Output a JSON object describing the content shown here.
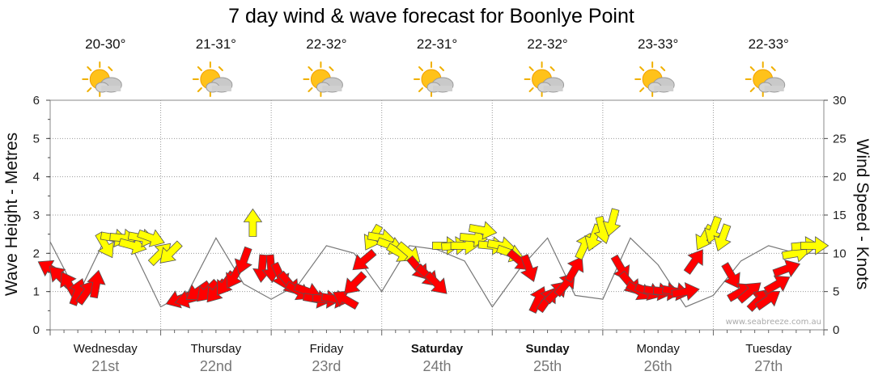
{
  "chart_data": {
    "type": "line",
    "title": "7 day wind & wave forecast for Boonlye Point",
    "ylabel_left": "Wave Height - Metres",
    "ylabel_right": "Wind Speed - Knots",
    "ylim_left": [
      0,
      6
    ],
    "ylim_right": [
      0,
      30
    ],
    "yticks_left": [
      "0",
      "1",
      "2",
      "3",
      "4",
      "5",
      "6"
    ],
    "yticks_right": [
      "0",
      "5",
      "10",
      "15",
      "20",
      "25",
      "30"
    ],
    "credit": "www.seabreeze.com.au",
    "days": [
      {
        "name": "Wednesday",
        "date": "21st",
        "temp": "20-30°",
        "weather": "sun-cloud-icon",
        "bold": false
      },
      {
        "name": "Thursday",
        "date": "22nd",
        "temp": "21-31°",
        "weather": "sun-cloud-icon",
        "bold": false
      },
      {
        "name": "Friday",
        "date": "23rd",
        "temp": "22-32°",
        "weather": "sun-cloud-icon",
        "bold": false
      },
      {
        "name": "Saturday",
        "date": "24th",
        "temp": "22-31°",
        "weather": "sun-cloud-icon",
        "bold": true
      },
      {
        "name": "Sunday",
        "date": "25th",
        "temp": "22-32°",
        "weather": "sun-cloud-icon",
        "bold": true
      },
      {
        "name": "Monday",
        "date": "26th",
        "temp": "23-33°",
        "weather": "sun-cloud-icon",
        "bold": false
      },
      {
        "name": "Tuesday",
        "date": "27th",
        "temp": "22-33°",
        "weather": "sun-cloud-icon",
        "bold": false
      }
    ],
    "colors": {
      "wind_strong": "#ff0000",
      "wind_light": "#ffff00",
      "outline": "#555555",
      "grid": "#999999"
    },
    "series": [
      {
        "name": "wave height",
        "unit": "m",
        "x_hours": [
          0,
          6,
          12,
          18,
          24,
          30,
          36,
          42,
          48,
          54,
          60,
          66,
          72,
          78,
          84,
          90,
          96,
          102,
          108,
          114,
          120,
          126,
          132,
          138,
          144,
          150,
          156,
          162,
          168
        ],
        "values": [
          2.3,
          0.9,
          2.4,
          2.1,
          0.6,
          1.0,
          2.4,
          1.2,
          0.8,
          1.2,
          2.2,
          2.0,
          1.0,
          2.2,
          2.1,
          1.8,
          0.6,
          1.6,
          2.4,
          0.9,
          0.8,
          2.4,
          1.7,
          0.6,
          0.9,
          1.8,
          2.2,
          2.0,
          2.0
        ]
      },
      {
        "name": "wind",
        "unit": "knots",
        "arrows": [
          {
            "h": 0,
            "kn": 8,
            "dir": 300
          },
          {
            "h": 2,
            "kn": 7,
            "dir": 315
          },
          {
            "h": 4,
            "kn": 6,
            "dir": 330
          },
          {
            "h": 6,
            "kn": 5,
            "dir": 20
          },
          {
            "h": 8,
            "kn": 5,
            "dir": 35
          },
          {
            "h": 10,
            "kn": 6,
            "dir": 10
          },
          {
            "h": 12,
            "kn": 11,
            "dir": 150
          },
          {
            "h": 14,
            "kn": 12,
            "dir": 100
          },
          {
            "h": 16,
            "kn": 12,
            "dir": 95
          },
          {
            "h": 18,
            "kn": 11,
            "dir": 105
          },
          {
            "h": 20,
            "kn": 12,
            "dir": 100
          },
          {
            "h": 22,
            "kn": 12,
            "dir": 110
          },
          {
            "h": 24,
            "kn": 10,
            "dir": 45
          },
          {
            "h": 26,
            "kn": 10,
            "dir": 225
          },
          {
            "h": 28,
            "kn": 4,
            "dir": 250
          },
          {
            "h": 30,
            "kn": 4,
            "dir": 255
          },
          {
            "h": 32,
            "kn": 5,
            "dir": 235
          },
          {
            "h": 34,
            "kn": 5,
            "dir": 225
          },
          {
            "h": 36,
            "kn": 5,
            "dir": 220
          },
          {
            "h": 38,
            "kn": 6,
            "dir": 215
          },
          {
            "h": 40,
            "kn": 7,
            "dir": 210
          },
          {
            "h": 42,
            "kn": 9,
            "dir": 200
          },
          {
            "h": 44,
            "kn": 14,
            "dir": 0
          },
          {
            "h": 46,
            "kn": 8,
            "dir": 185
          },
          {
            "h": 48,
            "kn": 8,
            "dir": 175
          },
          {
            "h": 50,
            "kn": 7,
            "dir": 155
          },
          {
            "h": 52,
            "kn": 6,
            "dir": 140
          },
          {
            "h": 54,
            "kn": 5,
            "dir": 120
          },
          {
            "h": 56,
            "kn": 5,
            "dir": 110
          },
          {
            "h": 58,
            "kn": 4,
            "dir": 100
          },
          {
            "h": 60,
            "kn": 4,
            "dir": 95
          },
          {
            "h": 62,
            "kn": 4,
            "dir": 100
          },
          {
            "h": 64,
            "kn": 4,
            "dir": 300
          },
          {
            "h": 66,
            "kn": 6,
            "dir": 225
          },
          {
            "h": 68,
            "kn": 9,
            "dir": 230
          },
          {
            "h": 70,
            "kn": 12,
            "dir": 210
          },
          {
            "h": 72,
            "kn": 12,
            "dir": 100
          },
          {
            "h": 74,
            "kn": 11,
            "dir": 110
          },
          {
            "h": 76,
            "kn": 10,
            "dir": 120
          },
          {
            "h": 78,
            "kn": 10,
            "dir": 130
          },
          {
            "h": 80,
            "kn": 8,
            "dir": 140
          },
          {
            "h": 82,
            "kn": 7,
            "dir": 135
          },
          {
            "h": 84,
            "kn": 6,
            "dir": 135
          },
          {
            "h": 86,
            "kn": 11,
            "dir": 90
          },
          {
            "h": 88,
            "kn": 11,
            "dir": 85
          },
          {
            "h": 90,
            "kn": 11,
            "dir": 90
          },
          {
            "h": 92,
            "kn": 12,
            "dir": 95
          },
          {
            "h": 94,
            "kn": 13,
            "dir": 100
          },
          {
            "h": 96,
            "kn": 11,
            "dir": 95
          },
          {
            "h": 98,
            "kn": 11,
            "dir": 100
          },
          {
            "h": 100,
            "kn": 10,
            "dir": 110
          },
          {
            "h": 102,
            "kn": 9,
            "dir": 130
          },
          {
            "h": 104,
            "kn": 8,
            "dir": 160
          },
          {
            "h": 106,
            "kn": 4,
            "dir": 25
          },
          {
            "h": 108,
            "kn": 4,
            "dir": 35
          },
          {
            "h": 110,
            "kn": 5,
            "dir": 45
          },
          {
            "h": 112,
            "kn": 6,
            "dir": 40
          },
          {
            "h": 114,
            "kn": 8,
            "dir": 30
          },
          {
            "h": 116,
            "kn": 11,
            "dir": 25
          },
          {
            "h": 118,
            "kn": 12,
            "dir": 200
          },
          {
            "h": 120,
            "kn": 13,
            "dir": 165
          },
          {
            "h": 122,
            "kn": 14,
            "dir": 195
          },
          {
            "h": 124,
            "kn": 8,
            "dir": 150
          },
          {
            "h": 126,
            "kn": 6,
            "dir": 140
          },
          {
            "h": 128,
            "kn": 5,
            "dir": 120
          },
          {
            "h": 130,
            "kn": 5,
            "dir": 110
          },
          {
            "h": 132,
            "kn": 5,
            "dir": 100
          },
          {
            "h": 134,
            "kn": 5,
            "dir": 95
          },
          {
            "h": 136,
            "kn": 5,
            "dir": 100
          },
          {
            "h": 138,
            "kn": 5,
            "dir": 80
          },
          {
            "h": 140,
            "kn": 9,
            "dir": 35
          },
          {
            "h": 142,
            "kn": 12,
            "dir": 210
          },
          {
            "h": 144,
            "kn": 13,
            "dir": 200
          },
          {
            "h": 146,
            "kn": 12,
            "dir": 200
          },
          {
            "h": 148,
            "kn": 7,
            "dir": 150
          },
          {
            "h": 150,
            "kn": 5,
            "dir": 60
          },
          {
            "h": 152,
            "kn": 5,
            "dir": 50
          },
          {
            "h": 154,
            "kn": 4,
            "dir": 45
          },
          {
            "h": 156,
            "kn": 4,
            "dir": 55
          },
          {
            "h": 158,
            "kn": 6,
            "dir": 60
          },
          {
            "h": 160,
            "kn": 8,
            "dir": 70
          },
          {
            "h": 162,
            "kn": 10,
            "dir": 80
          },
          {
            "h": 164,
            "kn": 11,
            "dir": 85
          },
          {
            "h": 166,
            "kn": 11,
            "dir": 90
          }
        ]
      }
    ]
  }
}
